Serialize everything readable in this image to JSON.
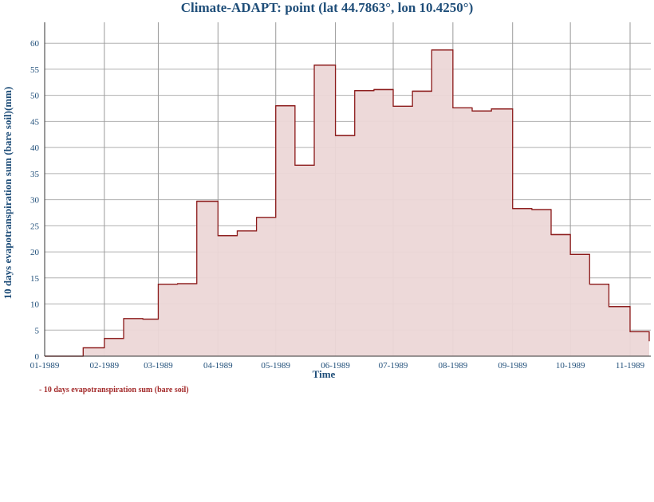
{
  "chart_data": {
    "type": "area",
    "title": "Climate-ADAPT: point (lat 44.7863°, lon 10.4250°)",
    "xlabel": "Time",
    "ylabel": "10 days evapotranspiration sum (bare soil)(mm)",
    "ylim": [
      0,
      64
    ],
    "yticks": [
      0,
      5,
      10,
      15,
      20,
      25,
      30,
      35,
      40,
      45,
      50,
      55,
      60
    ],
    "xticks": [
      "01-1989",
      "02-1989",
      "03-1989",
      "04-1989",
      "05-1989",
      "06-1989",
      "07-1989",
      "08-1989",
      "09-1989",
      "10-1989",
      "11-1989"
    ],
    "grid": true,
    "legend_position": "bottom-left",
    "series": [
      {
        "name": "10 days evapotranspiration sum (bare soil)",
        "color": "#8b1a1a",
        "fill": "#ecd7d7",
        "step": "post",
        "x": [
          "1989-01-01",
          "1989-01-11",
          "1989-01-21",
          "1989-02-01",
          "1989-02-11",
          "1989-02-21",
          "1989-03-01",
          "1989-03-11",
          "1989-03-21",
          "1989-04-01",
          "1989-04-11",
          "1989-04-21",
          "1989-05-01",
          "1989-05-11",
          "1989-05-21",
          "1989-06-01",
          "1989-06-11",
          "1989-06-21",
          "1989-07-01",
          "1989-07-11",
          "1989-07-21",
          "1989-08-01",
          "1989-08-11",
          "1989-08-21",
          "1989-09-01",
          "1989-09-11",
          "1989-09-21",
          "1989-10-01",
          "1989-10-11",
          "1989-10-21",
          "1989-11-01"
        ],
        "values": [
          0.0,
          0.0,
          1.6,
          3.4,
          7.2,
          7.1,
          13.8,
          13.9,
          29.7,
          23.1,
          24.0,
          26.6,
          48.0,
          36.6,
          55.8,
          42.3,
          50.9,
          51.1,
          47.9,
          50.8,
          58.7,
          47.6,
          47.0,
          47.4,
          28.3,
          28.1,
          23.3,
          19.5,
          13.8,
          9.5,
          4.7
        ]
      }
    ]
  }
}
